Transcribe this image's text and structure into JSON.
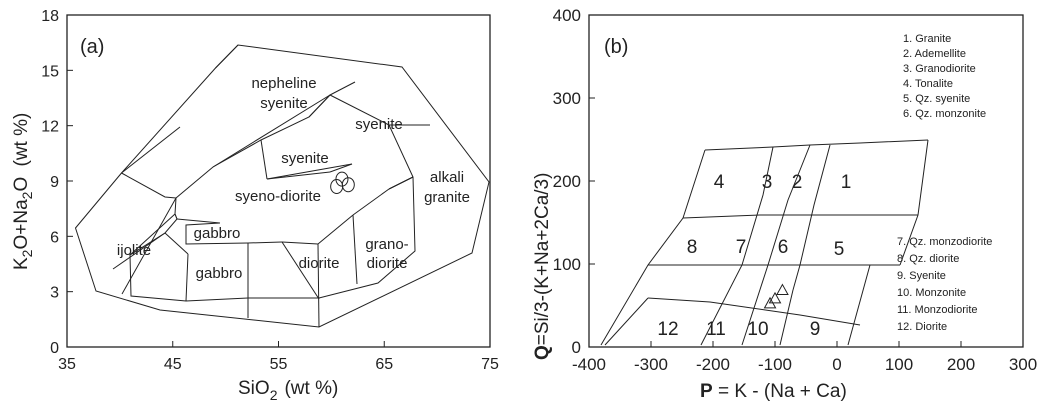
{
  "chart_data": [
    {
      "type": "scatter",
      "panel_label": "(a)",
      "xlabel_main": "SiO",
      "xlabel_sub": "2",
      "xlabel_unit": "(wt %)",
      "ylabel": "K2O+Na2O (wt %)",
      "ylabel_parts": [
        "K",
        "2",
        "O+Na",
        "2",
        "O",
        " (wt %)"
      ],
      "xlim": [
        35,
        75
      ],
      "ylim": [
        0,
        18
      ],
      "xticks": [
        35,
        45,
        55,
        65,
        75
      ],
      "yticks": [
        0,
        3,
        6,
        9,
        12,
        15,
        18
      ],
      "fields": [
        {
          "name": "nepheline syenite",
          "lines": [
            "nepheline",
            "syenite"
          ]
        },
        {
          "name": "syenite (outer)",
          "lines": [
            "syenite"
          ]
        },
        {
          "name": "syenite (inner)",
          "lines": [
            "syenite"
          ]
        },
        {
          "name": "alkali granite",
          "lines": [
            "alkali",
            "granite"
          ]
        },
        {
          "name": "syeno-diorite",
          "lines": [
            "syeno-diorite"
          ]
        },
        {
          "name": "ijolite",
          "lines": [
            "ijolite"
          ]
        },
        {
          "name": "gabbro (inner)",
          "lines": [
            "gabbro"
          ]
        },
        {
          "name": "gabbro (outer)",
          "lines": [
            "gabbro"
          ]
        },
        {
          "name": "diorite",
          "lines": [
            "diorite"
          ]
        },
        {
          "name": "granodiorite",
          "lines": [
            "grano-",
            "diorite"
          ]
        }
      ],
      "points": [
        {
          "x": 61.0,
          "y": 9.1
        },
        {
          "x": 60.5,
          "y": 8.7
        },
        {
          "x": 61.6,
          "y": 8.8
        }
      ]
    },
    {
      "type": "scatter",
      "panel_label": "(b)",
      "xlabel_bold": "P",
      "xlabel_rest": " = K - (Na + Ca)",
      "ylabel_bold": "Q",
      "ylabel_rest": "=Si/3-(K+Na+2Ca/3)",
      "xlim": [
        -400,
        300
      ],
      "ylim": [
        0,
        400
      ],
      "xticks": [
        "-400",
        "-300",
        "-200",
        "-100",
        "0",
        "100",
        "200",
        "300"
      ],
      "yticks": [
        "0",
        "100",
        "200",
        "300",
        "400"
      ],
      "field_numbers": [
        "1",
        "2",
        "3",
        "4",
        "5",
        "6",
        "7",
        "8",
        "9",
        "10",
        "11",
        "12"
      ],
      "legend_top": [
        "1. Granite",
        "2. Ademellite",
        "3. Granodiorite",
        "4. Tonalite",
        "5. Qz. syenite",
        "6. Qz. monzonite"
      ],
      "legend_bottom": [
        "7. Qz. monzodiorite",
        "8. Qz. diorite",
        "9. Syenite",
        "10. Monzonite",
        "11. Monzodiorite",
        "12. Diorite"
      ],
      "points": [
        {
          "x": -108,
          "y": 52
        },
        {
          "x": -100,
          "y": 58
        },
        {
          "x": -88,
          "y": 68
        }
      ]
    }
  ]
}
